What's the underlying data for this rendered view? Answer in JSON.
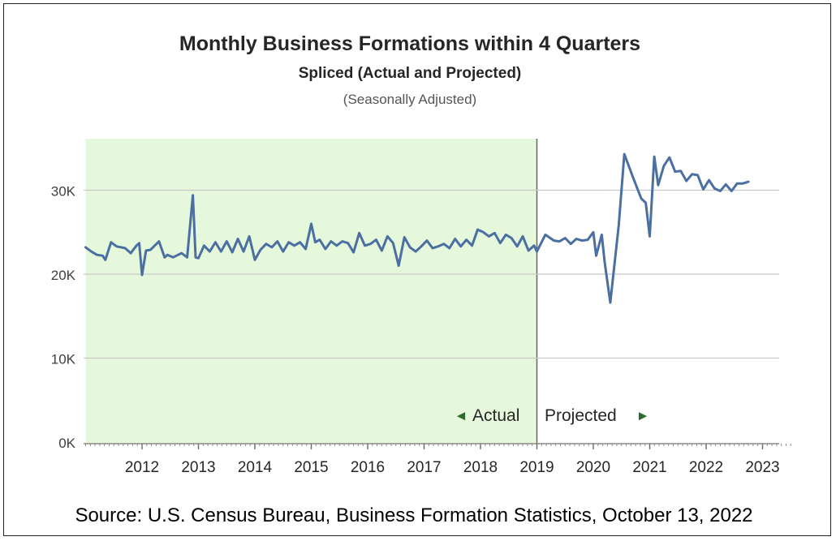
{
  "chart_data": {
    "type": "line",
    "title": "Monthly Business Formations within 4 Quarters",
    "subtitle": "Spliced (Actual and Projected)",
    "note": "(Seasonally Adjusted)",
    "source": "Source: U.S. Census Bureau, Business Formation Statistics, October 13, 2022",
    "xlim": [
      2011.0,
      2023.5
    ],
    "ylim": [
      0,
      36000
    ],
    "y_ticks": [
      0,
      10000,
      20000,
      30000
    ],
    "y_tick_labels": [
      "0K",
      "10K",
      "20K",
      "30K"
    ],
    "x_ticks": [
      2012,
      2013,
      2014,
      2015,
      2016,
      2017,
      2018,
      2019,
      2020,
      2021,
      2022,
      2023
    ],
    "x_tick_labels": [
      "2012",
      "2013",
      "2014",
      "2015",
      "2016",
      "2017",
      "2018",
      "2019",
      "2020",
      "2021",
      "2022",
      "2023"
    ],
    "grid": true,
    "actual_region": {
      "x_start": 2011.0,
      "x_end": 2019.0,
      "color": "#e6f8dc"
    },
    "region_labels": {
      "actual": "Actual",
      "projected": "Projected",
      "actual_arrow": "◄",
      "projected_arrow": "►",
      "arrow_color": "#2e6b2e"
    },
    "series": [
      {
        "color": "#4a6fa0",
        "x": [
          2011.0,
          2011.1,
          2011.2,
          2011.3,
          2011.35,
          2011.45,
          2011.55,
          2011.7,
          2011.8,
          2011.9,
          2011.95,
          2012.0,
          2012.07,
          2012.15,
          2012.3,
          2012.4,
          2012.45,
          2012.55,
          2012.7,
          2012.8,
          2012.9,
          2012.95,
          2013.0,
          2013.1,
          2013.2,
          2013.3,
          2013.4,
          2013.5,
          2013.6,
          2013.7,
          2013.8,
          2013.9,
          2014.0,
          2014.1,
          2014.2,
          2014.3,
          2014.4,
          2014.5,
          2014.6,
          2014.7,
          2014.8,
          2014.9,
          2015.0,
          2015.07,
          2015.15,
          2015.25,
          2015.35,
          2015.45,
          2015.55,
          2015.65,
          2015.75,
          2015.85,
          2015.95,
          2016.05,
          2016.15,
          2016.25,
          2016.35,
          2016.45,
          2016.55,
          2016.65,
          2016.75,
          2016.85,
          2016.95,
          2017.05,
          2017.15,
          2017.25,
          2017.35,
          2017.45,
          2017.55,
          2017.65,
          2017.75,
          2017.85,
          2017.95,
          2018.05,
          2018.15,
          2018.25,
          2018.35,
          2018.45,
          2018.55,
          2018.65,
          2018.75,
          2018.85,
          2018.95,
          2019.0,
          2019.15,
          2019.3,
          2019.4,
          2019.5,
          2019.6,
          2019.7,
          2019.8,
          2019.9,
          2020.0,
          2020.05,
          2020.15,
          2020.2,
          2020.3,
          2020.45,
          2020.55,
          2020.7,
          2020.85,
          2020.93,
          2021.0,
          2021.08,
          2021.15,
          2021.25,
          2021.35,
          2021.45,
          2021.55,
          2021.65,
          2021.75,
          2021.85,
          2021.95,
          2022.05,
          2022.15,
          2022.25,
          2022.35,
          2022.45,
          2022.55,
          2022.65,
          2022.75
        ],
        "y": [
          23200,
          22700,
          22300,
          22200,
          21700,
          23800,
          23300,
          23100,
          22500,
          23400,
          23700,
          19900,
          22800,
          22900,
          23900,
          22000,
          22300,
          22000,
          22500,
          22000,
          29400,
          22000,
          21900,
          23400,
          22700,
          23800,
          22700,
          23900,
          22600,
          24200,
          22700,
          24500,
          21700,
          22900,
          23600,
          23200,
          23900,
          22700,
          23800,
          23400,
          23800,
          23000,
          26000,
          23800,
          24100,
          23000,
          23900,
          23400,
          23900,
          23700,
          22600,
          24900,
          23400,
          23600,
          24100,
          22800,
          24500,
          23700,
          21000,
          24400,
          23200,
          22700,
          23300,
          24000,
          23100,
          23300,
          23600,
          23100,
          24200,
          23300,
          24100,
          23400,
          25300,
          25000,
          24500,
          24900,
          23700,
          24700,
          24300,
          23300,
          24500,
          22800,
          23400,
          22700,
          24700,
          24000,
          23900,
          24300,
          23600,
          24200,
          24000,
          24100,
          25000,
          22200,
          24700,
          21500,
          16600,
          25800,
          34300,
          31600,
          29000,
          28500,
          24500,
          34000,
          30600,
          32900,
          33900,
          32200,
          32300,
          31100,
          31900,
          31800,
          30100,
          31200,
          30200,
          29900,
          30700,
          29900,
          30800,
          30800,
          31000
        ]
      }
    ]
  }
}
